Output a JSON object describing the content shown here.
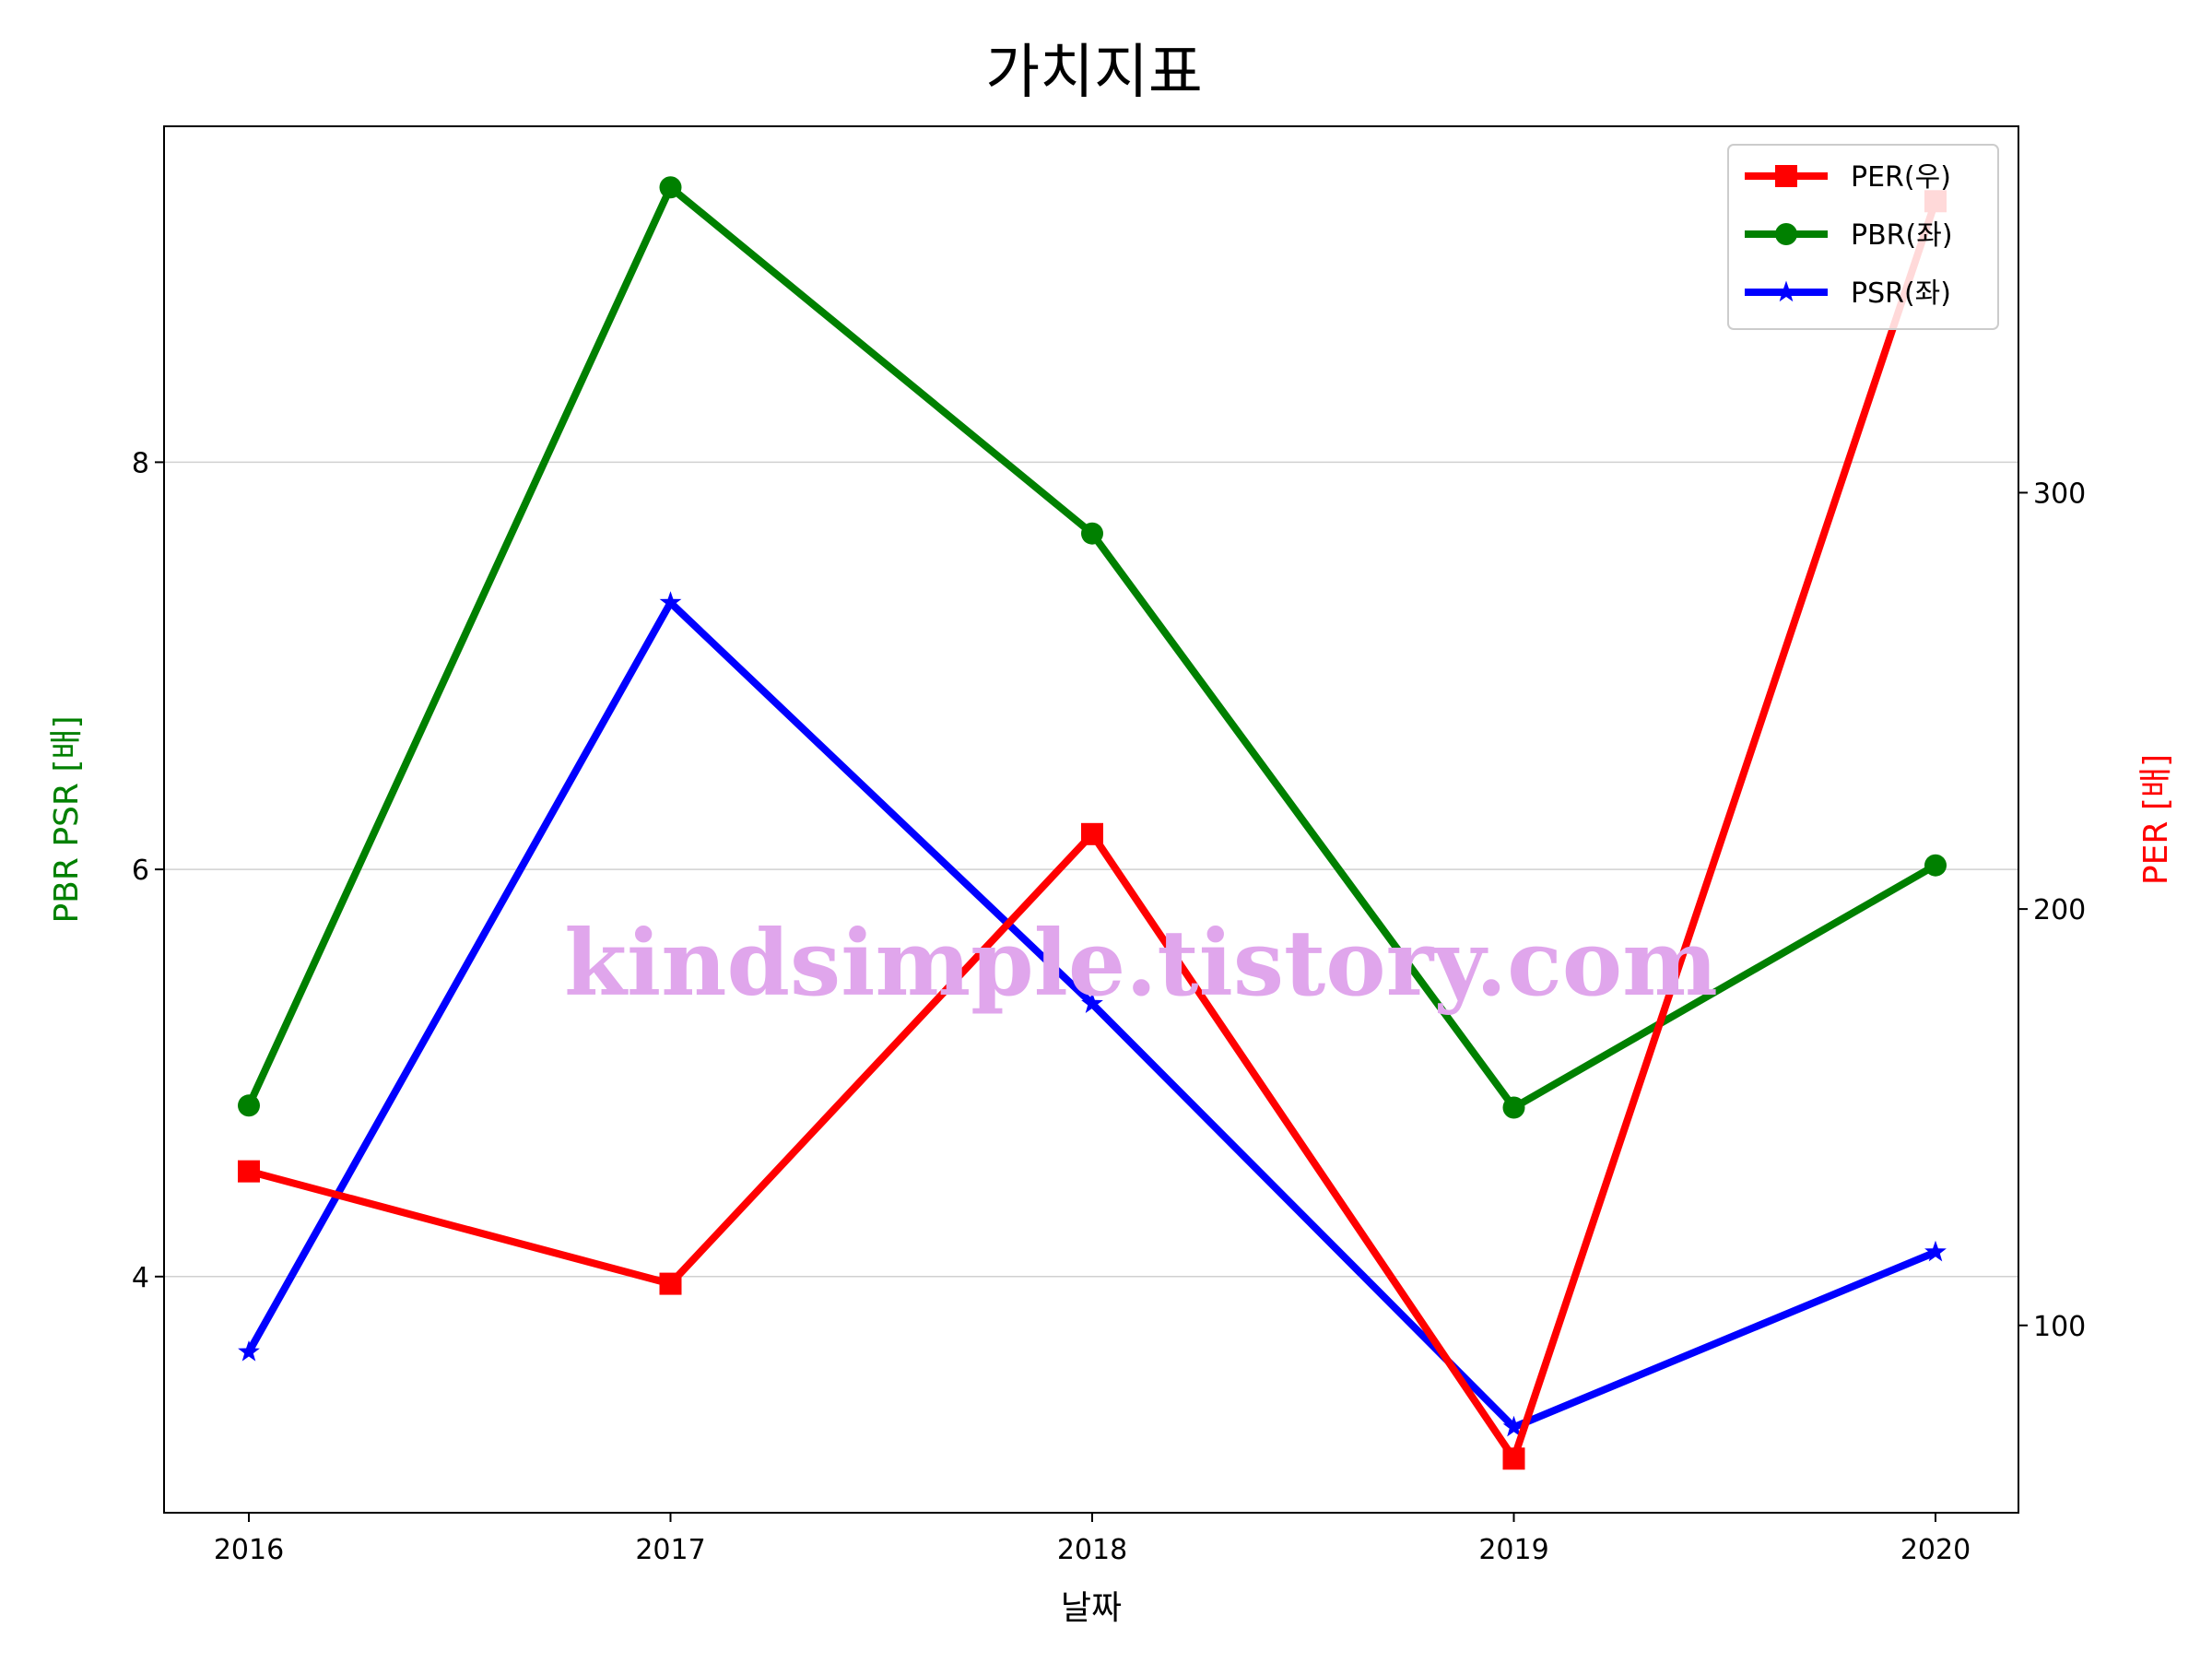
{
  "chart_data": {
    "type": "line",
    "title": "가치지표",
    "xlabel": "날짜",
    "ylabel_left": "PBR PSR [배]",
    "ylabel_right": "PER [배]",
    "x": [
      "2016",
      "2017",
      "2018",
      "2019",
      "2020"
    ],
    "ylim_left": [
      2.84,
      9.65
    ],
    "ylim_right": [
      55,
      388
    ],
    "yticks_left": [
      "4",
      "6",
      "8"
    ],
    "yticks_right": [
      "100",
      "200",
      "300"
    ],
    "grid": "horizontal",
    "legend_position": "top-right",
    "watermark": "kindsimple.tistory.com",
    "series": [
      {
        "name": "PER(우)",
        "axis": "right",
        "color": "#ff0000",
        "marker": "square",
        "values": [
          137,
          110,
          218,
          68,
          370
        ]
      },
      {
        "name": "PBR(좌)",
        "axis": "left",
        "color": "#008000",
        "marker": "circle",
        "values": [
          4.84,
          9.35,
          7.65,
          4.83,
          6.02
        ]
      },
      {
        "name": "PSR(좌)",
        "axis": "left",
        "color": "#0000ff",
        "marker": "star",
        "values": [
          3.63,
          7.31,
          5.34,
          3.26,
          4.12
        ]
      }
    ]
  }
}
